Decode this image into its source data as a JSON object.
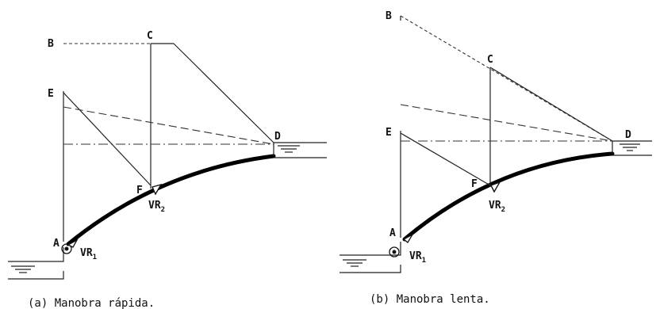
{
  "diagram_a": {
    "points": {
      "A": "A",
      "B": "B",
      "C": "C",
      "D": "D",
      "E": "E",
      "F": "F"
    },
    "valve1": {
      "main": "VR",
      "sub": "1"
    },
    "valve2": {
      "main": "VR",
      "sub": "2"
    },
    "caption": "(a) Manobra rápida."
  },
  "diagram_b": {
    "points": {
      "A": "A",
      "B": "B",
      "C": "C",
      "D": "D",
      "E": "E",
      "F": "F"
    },
    "valve1": {
      "main": "VR",
      "sub": "1"
    },
    "valve2": {
      "main": "VR",
      "sub": "2"
    },
    "caption": "(b) Manobra lenta."
  }
}
